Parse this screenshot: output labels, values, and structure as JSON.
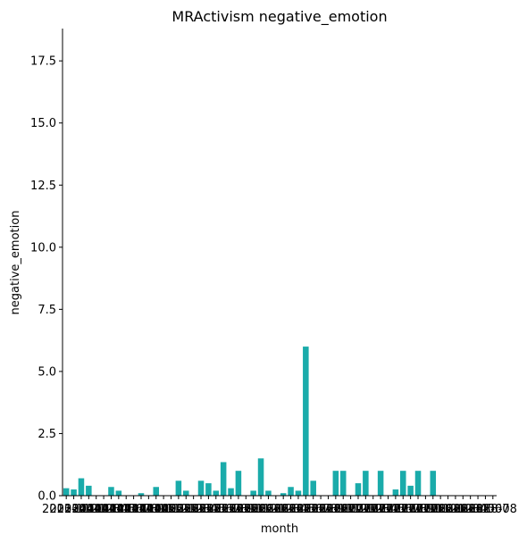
{
  "chart_data": {
    "type": "bar",
    "title": "MRActivism negative_emotion",
    "xlabel": "month",
    "ylabel": "negative_emotion",
    "ylim": [
      0,
      18.8
    ],
    "yticks": [
      "0.0",
      "2.5",
      "5.0",
      "7.5",
      "10.0",
      "12.5",
      "15.0",
      "17.5"
    ],
    "grid": false,
    "bar_color": "#1aabaa",
    "categories": [
      "2013-11",
      "2013-12",
      "2014-01",
      "2014-02",
      "2014-03",
      "2014-04",
      "2014-05",
      "2014-06",
      "2014-07",
      "2014-08",
      "2014-09",
      "2014-10",
      "2014-11",
      "2014-12",
      "2015-01",
      "2015-02",
      "2015-03",
      "2015-04",
      "2015-05",
      "2015-06",
      "2015-07",
      "2015-08",
      "2015-09",
      "2015-10",
      "2015-11",
      "2015-12",
      "2016-01",
      "2016-02",
      "2016-03",
      "2016-04",
      "2016-05",
      "2016-06",
      "2016-07",
      "2016-08",
      "2016-09",
      "2016-10",
      "2016-11",
      "2016-12",
      "2017-01",
      "2017-02",
      "2017-03",
      "2017-04",
      "2017-05",
      "2017-06",
      "2017-07",
      "2017-08",
      "2017-09",
      "2017-10",
      "2017-11",
      "2017-12",
      "2018-01",
      "2018-02",
      "2018-03",
      "2018-04",
      "2018-05",
      "2018-06",
      "2018-07",
      "2018-08"
    ],
    "values": [
      0.3,
      0.25,
      0.7,
      0.4,
      0,
      0,
      0.35,
      0.2,
      0,
      0,
      0.1,
      0,
      0.35,
      0,
      0,
      0.6,
      0.2,
      0,
      0.6,
      0.5,
      0.2,
      1.35,
      0.3,
      1.0,
      0,
      0.2,
      1.5,
      0.2,
      0,
      0.1,
      0.35,
      0.2,
      6.0,
      0.6,
      0,
      0,
      1.0,
      1.0,
      0,
      0.5,
      1.0,
      0,
      1.0,
      0,
      0.25,
      1.0,
      0.4,
      1.0,
      0,
      1.0,
      0,
      0,
      0,
      0,
      0,
      0,
      0,
      0
    ]
  }
}
